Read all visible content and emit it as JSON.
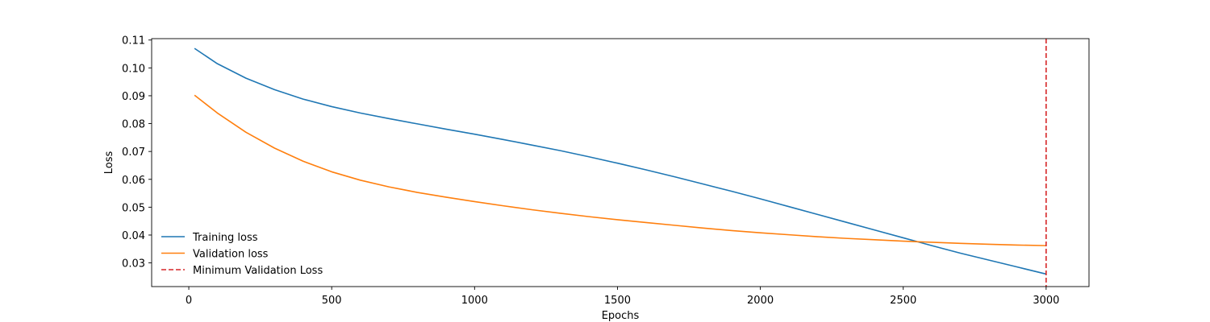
{
  "chart_data": {
    "type": "line",
    "title": "",
    "xlabel": "Epochs",
    "ylabel": "Loss",
    "xlim": [
      -130,
      3150
    ],
    "ylim": [
      0.0215,
      0.1105
    ],
    "xticks": [
      0,
      500,
      1000,
      1500,
      2000,
      2500,
      3000
    ],
    "xtick_labels": [
      "0",
      "500",
      "1000",
      "1500",
      "2000",
      "2500",
      "3000"
    ],
    "yticks": [
      0.03,
      0.04,
      0.05,
      0.06,
      0.07,
      0.08,
      0.09,
      0.1,
      0.11
    ],
    "ytick_labels": [
      "0.03",
      "0.04",
      "0.05",
      "0.06",
      "0.07",
      "0.08",
      "0.09",
      "0.10",
      "0.11"
    ],
    "grid": false,
    "legend_position": "lower-left",
    "x": [
      20,
      100,
      200,
      300,
      400,
      500,
      600,
      700,
      800,
      900,
      1000,
      1100,
      1200,
      1300,
      1400,
      1500,
      1600,
      1700,
      1800,
      1900,
      2000,
      2100,
      2200,
      2300,
      2400,
      2500,
      2600,
      2700,
      2800,
      2900,
      3000
    ],
    "series": [
      {
        "name": "Training loss",
        "color": "#1f77b4",
        "style": "solid",
        "values": [
          0.107,
          0.1015,
          0.0963,
          0.0922,
          0.0888,
          0.0861,
          0.0838,
          0.0818,
          0.0799,
          0.078,
          0.0762,
          0.0743,
          0.0723,
          0.0703,
          0.0681,
          0.0658,
          0.0634,
          0.0609,
          0.0583,
          0.0557,
          0.053,
          0.0502,
          0.0474,
          0.0446,
          0.0418,
          0.039,
          0.0362,
          0.0335,
          0.031,
          0.0285,
          0.026
        ]
      },
      {
        "name": "Validation loss",
        "color": "#ff7f0e",
        "style": "solid",
        "values": [
          0.0902,
          0.0838,
          0.0769,
          0.0712,
          0.0665,
          0.0627,
          0.0597,
          0.0573,
          0.0553,
          0.0536,
          0.052,
          0.0505,
          0.0491,
          0.0478,
          0.0466,
          0.0455,
          0.0445,
          0.0435,
          0.0425,
          0.0416,
          0.0408,
          0.0401,
          0.0394,
          0.0388,
          0.0383,
          0.0378,
          0.0374,
          0.037,
          0.0367,
          0.0364,
          0.0362
        ]
      }
    ],
    "vlines": [
      {
        "name": "Minimum Validation Loss",
        "x": 3000,
        "color": "#d62728",
        "style": "dashed"
      }
    ]
  }
}
